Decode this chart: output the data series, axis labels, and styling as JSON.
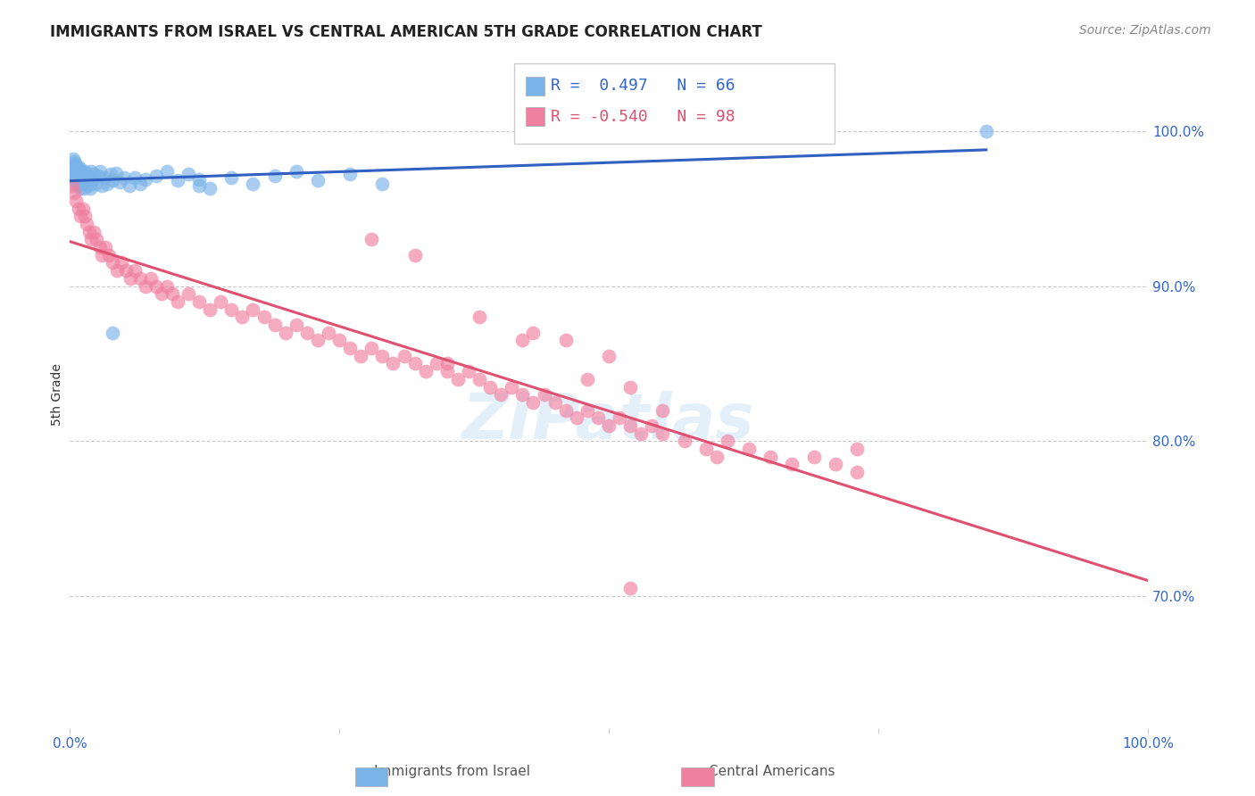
{
  "title": "IMMIGRANTS FROM ISRAEL VS CENTRAL AMERICAN 5TH GRADE CORRELATION CHART",
  "source": "Source: ZipAtlas.com",
  "ylabel": "5th Grade",
  "legend_blue_r": "R =  0.497",
  "legend_blue_n": "N = 66",
  "legend_pink_r": "R = -0.540",
  "legend_pink_n": "N = 98",
  "legend_label_blue": "Immigrants from Israel",
  "legend_label_pink": "Central Americans",
  "blue_color": "#7ab3e8",
  "pink_color": "#f080a0",
  "blue_line_color": "#3060c0",
  "pink_line_color": "#e05070",
  "watermark": "ZIPatlas",
  "blue_r": 0.497,
  "blue_n": 66,
  "pink_r": -0.54,
  "pink_n": 98,
  "blue_points_x": [
    0.001,
    0.002,
    0.002,
    0.003,
    0.003,
    0.004,
    0.004,
    0.004,
    0.005,
    0.005,
    0.005,
    0.006,
    0.006,
    0.007,
    0.007,
    0.008,
    0.008,
    0.009,
    0.009,
    0.01,
    0.01,
    0.011,
    0.011,
    0.012,
    0.012,
    0.013,
    0.014,
    0.015,
    0.016,
    0.017,
    0.018,
    0.019,
    0.02,
    0.021,
    0.022,
    0.024,
    0.026,
    0.028,
    0.03,
    0.032,
    0.035,
    0.038,
    0.04,
    0.043,
    0.046,
    0.05,
    0.055,
    0.06,
    0.065,
    0.07,
    0.08,
    0.09,
    0.1,
    0.11,
    0.12,
    0.13,
    0.15,
    0.17,
    0.19,
    0.21,
    0.23,
    0.26,
    0.29,
    0.04,
    0.12,
    0.85
  ],
  "blue_points_y": [
    0.975,
    0.978,
    0.972,
    0.976,
    0.982,
    0.97,
    0.974,
    0.98,
    0.968,
    0.973,
    0.979,
    0.966,
    0.975,
    0.971,
    0.977,
    0.965,
    0.974,
    0.969,
    0.976,
    0.963,
    0.972,
    0.968,
    0.974,
    0.966,
    0.971,
    0.963,
    0.974,
    0.968,
    0.972,
    0.965,
    0.97,
    0.963,
    0.974,
    0.968,
    0.972,
    0.966,
    0.971,
    0.974,
    0.965,
    0.97,
    0.966,
    0.972,
    0.968,
    0.973,
    0.967,
    0.97,
    0.965,
    0.97,
    0.966,
    0.969,
    0.971,
    0.974,
    0.968,
    0.972,
    0.969,
    0.963,
    0.97,
    0.966,
    0.971,
    0.974,
    0.968,
    0.972,
    0.966,
    0.87,
    0.965,
    1.0
  ],
  "pink_points_x": [
    0.002,
    0.004,
    0.006,
    0.008,
    0.01,
    0.012,
    0.014,
    0.016,
    0.018,
    0.02,
    0.022,
    0.025,
    0.028,
    0.03,
    0.033,
    0.036,
    0.04,
    0.044,
    0.048,
    0.052,
    0.056,
    0.06,
    0.065,
    0.07,
    0.075,
    0.08,
    0.085,
    0.09,
    0.095,
    0.1,
    0.11,
    0.12,
    0.13,
    0.14,
    0.15,
    0.16,
    0.17,
    0.18,
    0.19,
    0.2,
    0.21,
    0.22,
    0.23,
    0.24,
    0.25,
    0.26,
    0.27,
    0.28,
    0.29,
    0.3,
    0.31,
    0.32,
    0.33,
    0.34,
    0.35,
    0.36,
    0.37,
    0.38,
    0.39,
    0.4,
    0.41,
    0.42,
    0.43,
    0.44,
    0.45,
    0.46,
    0.47,
    0.48,
    0.49,
    0.5,
    0.51,
    0.52,
    0.53,
    0.54,
    0.55,
    0.57,
    0.59,
    0.61,
    0.63,
    0.65,
    0.67,
    0.69,
    0.71,
    0.73,
    0.38,
    0.42,
    0.48,
    0.52,
    0.35,
    0.28,
    0.32,
    0.43,
    0.46,
    0.5,
    0.55,
    0.6,
    0.52,
    0.73
  ],
  "pink_points_y": [
    0.965,
    0.96,
    0.955,
    0.95,
    0.945,
    0.95,
    0.945,
    0.94,
    0.935,
    0.93,
    0.935,
    0.93,
    0.925,
    0.92,
    0.925,
    0.92,
    0.915,
    0.91,
    0.915,
    0.91,
    0.905,
    0.91,
    0.905,
    0.9,
    0.905,
    0.9,
    0.895,
    0.9,
    0.895,
    0.89,
    0.895,
    0.89,
    0.885,
    0.89,
    0.885,
    0.88,
    0.885,
    0.88,
    0.875,
    0.87,
    0.875,
    0.87,
    0.865,
    0.87,
    0.865,
    0.86,
    0.855,
    0.86,
    0.855,
    0.85,
    0.855,
    0.85,
    0.845,
    0.85,
    0.845,
    0.84,
    0.845,
    0.84,
    0.835,
    0.83,
    0.835,
    0.83,
    0.825,
    0.83,
    0.825,
    0.82,
    0.815,
    0.82,
    0.815,
    0.81,
    0.815,
    0.81,
    0.805,
    0.81,
    0.805,
    0.8,
    0.795,
    0.8,
    0.795,
    0.79,
    0.785,
    0.79,
    0.785,
    0.78,
    0.88,
    0.865,
    0.84,
    0.835,
    0.85,
    0.93,
    0.92,
    0.87,
    0.865,
    0.855,
    0.82,
    0.79,
    0.705,
    0.795
  ]
}
